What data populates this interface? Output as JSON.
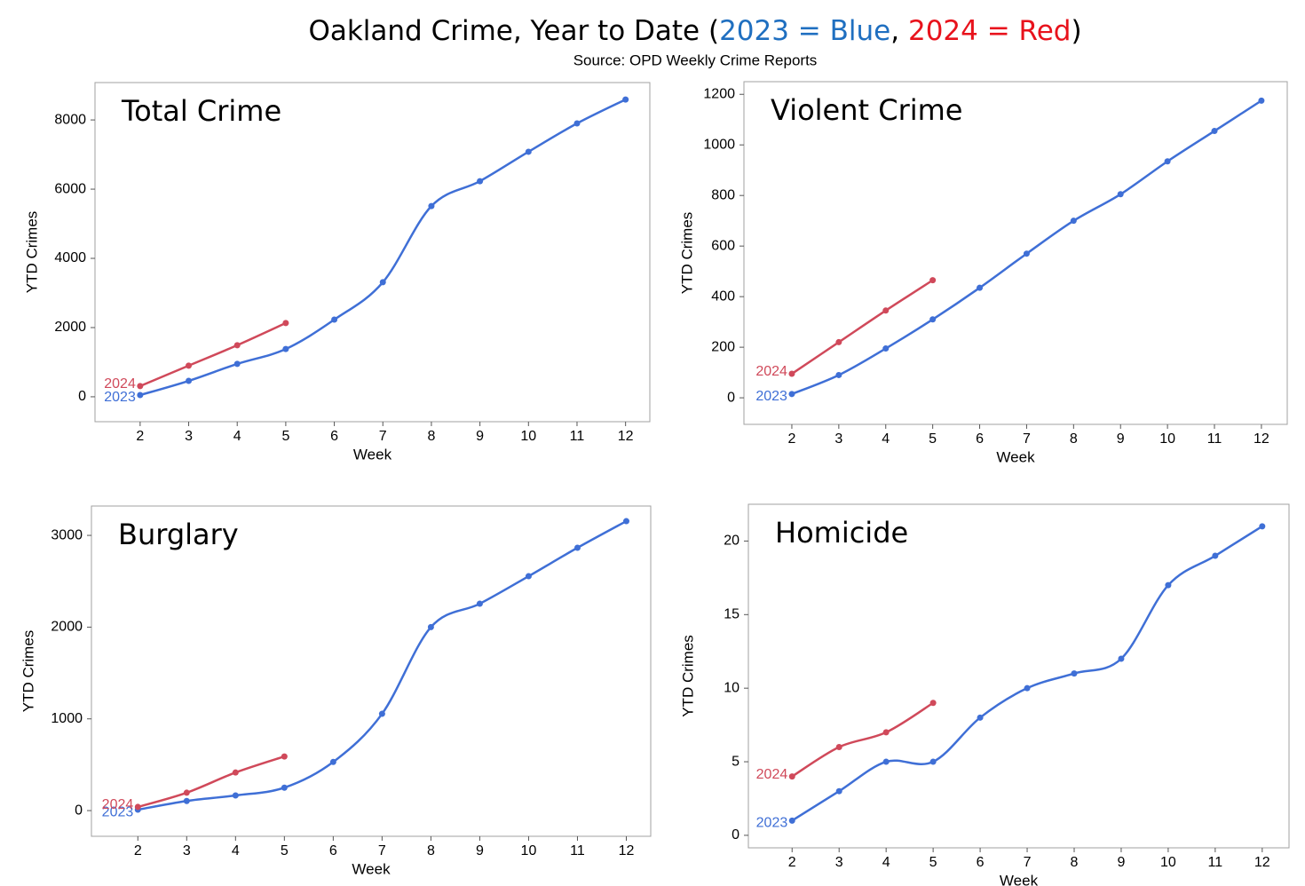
{
  "header": {
    "title": [
      "Oakland Crime, Year to Date (",
      "2023 = Blue",
      ", ",
      "2024 = Red",
      ")"
    ],
    "subtitle": "Source: OPD Weekly Crime Reports"
  },
  "chart_data": [
    {
      "type": "line",
      "title": "Total Crime",
      "xlabel": "Week",
      "ylabel": "YTD Crimes",
      "x": [
        2,
        3,
        4,
        5,
        6,
        7,
        8,
        9,
        10,
        11,
        12
      ],
      "series": [
        {
          "name": "2023",
          "color": "#3f6fd6",
          "values": [
            50,
            460,
            950,
            1380,
            2230,
            3310,
            5510,
            6230,
            7080,
            7900,
            8590
          ]
        },
        {
          "name": "2024",
          "color": "#d0495a",
          "values": [
            310,
            900,
            1490,
            2130,
            null,
            null,
            null,
            null,
            null,
            null,
            null
          ]
        }
      ],
      "xlim": [
        1.07,
        12.5
      ],
      "xticks": [
        2,
        3,
        4,
        5,
        6,
        7,
        8,
        9,
        10,
        11,
        12
      ],
      "ylim": [
        -720,
        9080
      ],
      "yticks": [
        0,
        2000,
        4000,
        6000,
        8000
      ]
    },
    {
      "type": "line",
      "title": "Violent Crime",
      "xlabel": "Week",
      "ylabel": "YTD Crimes",
      "x": [
        2,
        3,
        4,
        5,
        6,
        7,
        8,
        9,
        10,
        11,
        12
      ],
      "series": [
        {
          "name": "2023",
          "color": "#3f6fd6",
          "values": [
            15,
            90,
            195,
            310,
            435,
            570,
            700,
            805,
            935,
            1055,
            1175
          ]
        },
        {
          "name": "2024",
          "color": "#d0495a",
          "values": [
            95,
            220,
            345,
            465,
            null,
            null,
            null,
            null,
            null,
            null,
            null
          ]
        }
      ],
      "xlim": [
        0.98,
        12.55
      ],
      "xticks": [
        2,
        3,
        4,
        5,
        6,
        7,
        8,
        9,
        10,
        11,
        12
      ],
      "ylim": [
        -105,
        1250
      ],
      "yticks": [
        0,
        200,
        400,
        600,
        800,
        1000,
        1200
      ]
    },
    {
      "type": "line",
      "title": "Burglary",
      "xlabel": "Week",
      "ylabel": "YTD Crimes",
      "x": [
        2,
        3,
        4,
        5,
        6,
        7,
        8,
        9,
        10,
        11,
        12
      ],
      "series": [
        {
          "name": "2023",
          "color": "#3f6fd6",
          "values": [
            10,
            105,
            165,
            250,
            530,
            1055,
            2000,
            2255,
            2555,
            2865,
            3155
          ]
        },
        {
          "name": "2024",
          "color": "#d0495a",
          "values": [
            40,
            195,
            415,
            590,
            null,
            null,
            null,
            null,
            null,
            null,
            null
          ]
        }
      ],
      "xlim": [
        1.05,
        12.5
      ],
      "xticks": [
        2,
        3,
        4,
        5,
        6,
        7,
        8,
        9,
        10,
        11,
        12
      ],
      "ylim": [
        -280,
        3320
      ],
      "yticks": [
        0,
        1000,
        2000,
        3000
      ]
    },
    {
      "type": "line",
      "title": "Homicide",
      "xlabel": "Week",
      "ylabel": "YTD Crimes",
      "x": [
        2,
        3,
        4,
        5,
        6,
        7,
        8,
        9,
        10,
        11,
        12
      ],
      "series": [
        {
          "name": "2023",
          "color": "#3f6fd6",
          "values": [
            1,
            3,
            5,
            5,
            8,
            10,
            11,
            12,
            17,
            19,
            21
          ]
        },
        {
          "name": "2024",
          "color": "#d0495a",
          "values": [
            4,
            6,
            7,
            9,
            null,
            null,
            null,
            null,
            null,
            null,
            null
          ]
        }
      ],
      "xlim": [
        1.07,
        12.57
      ],
      "xticks": [
        2,
        3,
        4,
        5,
        6,
        7,
        8,
        9,
        10,
        11,
        12
      ],
      "ylim": [
        -0.85,
        22.5
      ],
      "yticks": [
        0,
        5,
        10,
        15,
        20
      ]
    }
  ]
}
